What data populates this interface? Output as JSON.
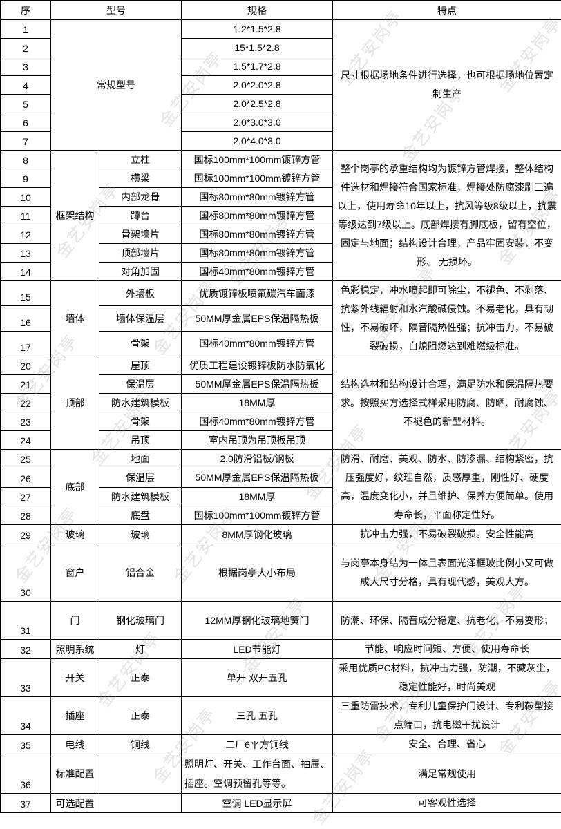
{
  "header": [
    "序",
    "型号",
    "规格",
    "特点"
  ],
  "watermark": "金艺安岗亭",
  "groups": [
    {
      "category": "常规型号",
      "feature": "尺寸根据场地条件进行选择，也可根据场地位置定制生产",
      "items": [
        {
          "seq": "1",
          "spec": "1.2*1.5*2.8"
        },
        {
          "seq": "2",
          "spec": "15*1.5*2.8"
        },
        {
          "seq": "3",
          "spec": "1.5*1.7*2.8"
        },
        {
          "seq": "4",
          "spec": "2.0*2.0*2.8"
        },
        {
          "seq": "5",
          "spec": "2.0*2.5*2.8"
        },
        {
          "seq": "6",
          "spec": "2.0*3.0*3.0"
        },
        {
          "seq": "7",
          "spec": "2.0*4.0*3.0"
        }
      ]
    },
    {
      "category": "框架结构",
      "feature": "整个岗亭的承重结构均为镀锌方管焊接，整体结构件选材和焊接符合国家标准，焊接处防腐漆刷三遍以上，使用寿命10年以上，抗风等级8级以上，抗震等级达到7级以上。底部焊接有脚底板，留有空位，固定与地面；结构设计合理，产品牢固安装，不变形、 无损坏。",
      "items": [
        {
          "seq": "8",
          "part": "立柱",
          "spec": "国标100mm*100mm镀锌方管"
        },
        {
          "seq": "9",
          "part": "横梁",
          "spec": "国标100mm*100mm镀锌方管"
        },
        {
          "seq": "10",
          "part": "内部龙骨",
          "spec": "国标80mm*80mm镀锌方管"
        },
        {
          "seq": "11",
          "part": "蹲台",
          "spec": "国标80mm*80mm镀锌方管"
        },
        {
          "seq": "12",
          "part": "骨架墙片",
          "spec": "国标80mm*80mm镀锌方管"
        },
        {
          "seq": "13",
          "part": "顶部墙片",
          "spec": "国标80mm*80mm镀锌方管"
        },
        {
          "seq": "14",
          "part": "对角加固",
          "spec": "国标40mm*80mm镀锌方管"
        }
      ]
    },
    {
      "category": "墙体",
      "feature": "色彩稳定，冲水喷起即可除尘，不褪色、不剥落、抗紫外线辐射和水汽酸碱侵蚀。不易老化，具有韧性，不易破坏，隔音隔热性强；抗冲击力，不易破裂破损，自熄阻燃达到难燃级标准。",
      "items": [
        {
          "seq": "15",
          "part": "外墙板",
          "spec": "优质镀锌板喷氟碳汽车面漆"
        },
        {
          "seq": "16",
          "part": "墙体保温层",
          "spec": "50MM厚金属EPS保温隔热板"
        },
        {
          "seq": "17",
          "part": "骨架",
          "spec": "国标40mm*80mm镀锌方管"
        }
      ]
    },
    {
      "category": "顶部",
      "feature": "结构选材和结构设计合理，满足防水和保温隔热要求。按照买方选择式样采用防腐、防晒、耐腐蚀、不褪色的新型材料。",
      "items": [
        {
          "seq": "20",
          "part": "屋顶",
          "spec": "优质工程建设镀锌板防水防氧化"
        },
        {
          "seq": "21",
          "part": "保温层",
          "spec": "50MM厚金属EPS保温隔热板"
        },
        {
          "seq": "22",
          "part": "防水建筑模板",
          "spec": "18MM厚"
        },
        {
          "seq": "23",
          "part": "骨架",
          "spec": "国标40mm*80mm镀锌方管"
        },
        {
          "seq": "24",
          "part": "吊顶",
          "spec": "室内吊顶为吊顶板吊顶"
        }
      ]
    },
    {
      "category": "底部",
      "feature": "防滑、耐磨、美观、防水、防渗漏、结构紧密，抗压强度好，纹理自然，质感厚重，刚性好、硬度高，温度变化小，并且维护、保养方便简单。使用寿命长，平面称定性好。",
      "items": [
        {
          "seq": "25",
          "part": "地面",
          "spec": "2.0防滑铝板/钢板"
        },
        {
          "seq": "26",
          "part": "保温层",
          "spec": "50MM厚金属EPS保温隔热板"
        },
        {
          "seq": "27",
          "part": "防水建筑模板",
          "spec": "18MM厚"
        },
        {
          "seq": "28",
          "part": "底盘",
          "spec": "国标100mm*100mm镀锌方管"
        }
      ]
    },
    {
      "category": "玻璃",
      "feature": "抗冲击力强，不易破裂破损。安全性能高",
      "items": [
        {
          "seq": "29",
          "part": "玻璃",
          "spec": "8MM厚钢化玻璃"
        }
      ]
    },
    {
      "category": "窗户",
      "feature": "与岗亭本身结为一体且表面光泽框玻比例小又可做成大尺寸分格，具有现代感，美观大方。",
      "items": [
        {
          "seq": "30",
          "part": "铝合金",
          "spec": "根据岗亭大小布局"
        }
      ]
    },
    {
      "category": "门",
      "feature": "防潮、环保、隔音成分稳定、抗老化、不易变形；",
      "items": [
        {
          "seq": "31",
          "part": "钢化玻璃门",
          "spec": "12MM厚钢化玻璃地簧门"
        }
      ]
    },
    {
      "category": "照明系统",
      "feature": "节能、响应时间短、方便、使用寿命长",
      "items": [
        {
          "seq": "32",
          "part": "灯",
          "spec": "LED节能灯"
        }
      ]
    },
    {
      "category": "开关",
      "feature": "采用优质PC材料，抗冲击力强，防潮，不藏灰尘，稳定性能好，时尚美观",
      "items": [
        {
          "seq": "33",
          "part": "正泰",
          "spec": "单开 双开五孔"
        }
      ]
    },
    {
      "category": "插座",
      "feature": "三重防雷技术，专利儿童保护门设计、专利鞍型接点端口，抗电磁干扰设计",
      "items": [
        {
          "seq": "34",
          "part": "正泰",
          "spec": "三孔 五孔"
        }
      ]
    },
    {
      "category": "电线",
      "feature": "安全、合理、省心",
      "items": [
        {
          "seq": "35",
          "part": "铜线",
          "spec": "二厂6平方铜线"
        }
      ]
    },
    {
      "category": "标准配置",
      "feature": "满足常规使用",
      "items": [
        {
          "seq": "36",
          "part": "",
          "spec": "照明灯、开关、工作台面、抽屉、插座。空调预留孔等等。"
        }
      ]
    },
    {
      "category": "可选配置",
      "feature": "可客观性选择",
      "items": [
        {
          "seq": "37",
          "part": "",
          "spec": "空调 LED显示屏"
        }
      ]
    }
  ]
}
